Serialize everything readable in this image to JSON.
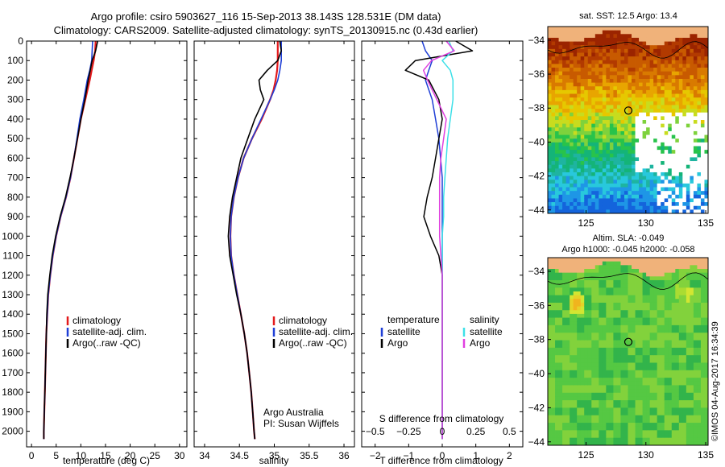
{
  "header": {
    "line1": "Argo profile: csiro 5903627_116 15-Sep-2013 38.143S 128.531E (DM data)",
    "line2": "Climatology: CARS2009. Satellite-adjusted climatology: synTS_20130915.nc (0.43d earlier)"
  },
  "legend": {
    "climatology": "climatology",
    "satellite_adj": "satellite-adj. clim.",
    "argo": "Argo(..raw -QC)",
    "temperature": "temperature",
    "salinity": "salinity",
    "satellite": "satellite",
    "argo_short": "Argo"
  },
  "credits": {
    "line1": "Argo Australia",
    "line2": "PI: Susan Wijffels",
    "stamp": "©IMOS 04-Aug-2017 16:34:39"
  },
  "colors": {
    "climatology": "#e31a1c",
    "satellite": "#1f3fd6",
    "argo": "#000000",
    "sat_salinity": "#3de0e8",
    "argo_salinity": "#e040e0",
    "land": "#f0b27a"
  },
  "maps": {
    "sst_title": "sat. SST: 12.5 Argo: 13.4",
    "sla_title1": "Altim. SLA: -0.049",
    "sla_title2": "Argo h1000: -0.045 h2000: -0.058",
    "lat_ticks": [
      -34,
      -36,
      -38,
      -40,
      -42,
      -44
    ],
    "lon_ticks": [
      125,
      130,
      135
    ],
    "lat_range": [
      -33.2,
      -44.2
    ],
    "lon_range": [
      121.8,
      135.2
    ],
    "float_position": [
      128.531,
      -38.143
    ]
  },
  "chart_data": [
    {
      "type": "line",
      "name": "temperature",
      "xlabel": "temperature (deg C)",
      "ylabel": "",
      "xlim": [
        -1,
        31.5
      ],
      "ylim": [
        2080,
        0
      ],
      "xticks": [
        0,
        5,
        10,
        15,
        20,
        25,
        30
      ],
      "yticks": [
        0,
        100,
        200,
        300,
        400,
        500,
        600,
        700,
        800,
        900,
        1000,
        1100,
        1200,
        1300,
        1400,
        1500,
        1600,
        1700,
        1800,
        1900,
        2000
      ],
      "depth": [
        0,
        50,
        100,
        150,
        200,
        300,
        400,
        500,
        600,
        700,
        800,
        900,
        1000,
        1100,
        1200,
        1300,
        1400,
        1500,
        1600,
        1700,
        1800,
        1900,
        2000,
        2040
      ],
      "series": [
        {
          "name": "climatology",
          "values": [
            13.0,
            12.9,
            12.6,
            12.2,
            11.8,
            10.9,
            10.0,
            9.3,
            8.6,
            7.9,
            7.0,
            5.9,
            5.0,
            4.3,
            3.8,
            3.4,
            3.2,
            3.0,
            2.9,
            2.8,
            2.7,
            2.6,
            2.5,
            2.5
          ]
        },
        {
          "name": "satellite",
          "values": [
            12.4,
            12.3,
            12.2,
            11.8,
            11.3,
            10.6,
            9.8,
            9.2,
            8.6,
            7.9,
            7.0,
            5.9,
            5.0,
            4.3,
            3.8,
            3.4,
            3.2,
            3.0,
            2.9,
            2.8,
            2.7,
            2.6,
            2.5,
            2.5
          ]
        },
        {
          "name": "Argo",
          "values": [
            13.4,
            13.0,
            12.3,
            11.9,
            11.5,
            10.8,
            10.0,
            9.3,
            8.6,
            7.8,
            6.9,
            5.8,
            4.9,
            4.2,
            3.7,
            3.3,
            3.1,
            3.0,
            2.9,
            2.8,
            2.7,
            2.6,
            2.5,
            2.5
          ]
        }
      ]
    },
    {
      "type": "line",
      "name": "salinity",
      "xlabel": "salinity",
      "xlim": [
        33.85,
        36.15
      ],
      "ylim": [
        2080,
        0
      ],
      "xticks": [
        34,
        34.5,
        35,
        35.5,
        36
      ],
      "depth": [
        0,
        50,
        100,
        150,
        200,
        250,
        300,
        400,
        500,
        600,
        700,
        800,
        900,
        1000,
        1100,
        1200,
        1300,
        1400,
        1500,
        1600,
        1700,
        1800,
        1900,
        2000,
        2040
      ],
      "series": [
        {
          "name": "climatology",
          "values": [
            35.05,
            35.05,
            35.05,
            35.04,
            35.02,
            34.99,
            34.94,
            34.82,
            34.68,
            34.56,
            34.48,
            34.42,
            34.38,
            34.37,
            34.38,
            34.42,
            34.47,
            34.52,
            34.57,
            34.61,
            34.64,
            34.67,
            34.69,
            34.71,
            34.72
          ]
        },
        {
          "name": "satellite",
          "values": [
            35.1,
            35.1,
            35.1,
            35.08,
            35.05,
            35.0,
            34.94,
            34.81,
            34.68,
            34.56,
            34.48,
            34.42,
            34.38,
            34.37,
            34.38,
            34.42,
            34.47,
            34.52,
            34.57,
            34.61,
            34.64,
            34.67,
            34.69,
            34.71,
            34.72
          ]
        },
        {
          "name": "Argo",
          "values": [
            35.08,
            35.1,
            35.05,
            34.9,
            34.78,
            34.8,
            34.85,
            34.72,
            34.62,
            34.52,
            34.46,
            34.4,
            34.36,
            34.34,
            34.36,
            34.41,
            34.46,
            34.52,
            34.57,
            34.61,
            34.64,
            34.67,
            34.69,
            34.71,
            34.72
          ]
        }
      ]
    },
    {
      "type": "line",
      "name": "difference",
      "xlabel": "T difference from climatology",
      "xlabel_top": "S difference from climatology",
      "xlim": [
        -2.4,
        2.4
      ],
      "ylim": [
        2080,
        0
      ],
      "xticks_bottom": [
        -2,
        -1,
        0,
        1,
        2
      ],
      "xticks_top": [
        -0.5,
        -0.25,
        0,
        0.25,
        0.5
      ],
      "depth": [
        0,
        50,
        100,
        150,
        200,
        300,
        400,
        500,
        600,
        700,
        800,
        900,
        1000,
        1100,
        1200,
        1400,
        1600,
        1800,
        2000,
        2040
      ],
      "series": [
        {
          "name": "temperature satellite",
          "values": [
            -0.6,
            -0.5,
            -0.3,
            -0.4,
            -0.5,
            -0.3,
            -0.2,
            -0.1,
            -0.05,
            0,
            0,
            0,
            0,
            0,
            0,
            0,
            0,
            0,
            0,
            0
          ]
        },
        {
          "name": "temperature Argo",
          "values": [
            0.4,
            0.9,
            -0.8,
            -1.1,
            -0.4,
            -0.1,
            0.0,
            -0.1,
            -0.2,
            -0.3,
            -0.45,
            -0.55,
            -0.35,
            -0.1,
            0.0,
            0.0,
            0.0,
            0.0,
            0.0,
            0.0
          ]
        },
        {
          "name": "salinity satellite",
          "values": [
            0.05,
            0.08,
            0.0,
            0.06,
            0.08,
            0.08,
            0.06,
            0.04,
            0.03,
            0.02,
            0.01,
            0.01,
            0.0,
            0.0,
            0.0,
            0.0,
            0.0,
            0.0,
            0.0,
            0.0
          ]
        },
        {
          "name": "salinity Argo",
          "values": [
            0.03,
            0.09,
            -0.08,
            -0.14,
            -0.11,
            -0.04,
            0.03,
            0.01,
            -0.01,
            -0.02,
            -0.02,
            -0.02,
            -0.02,
            -0.01,
            0.0,
            0.0,
            0.0,
            0.0,
            0.0,
            0.0
          ]
        }
      ]
    }
  ]
}
